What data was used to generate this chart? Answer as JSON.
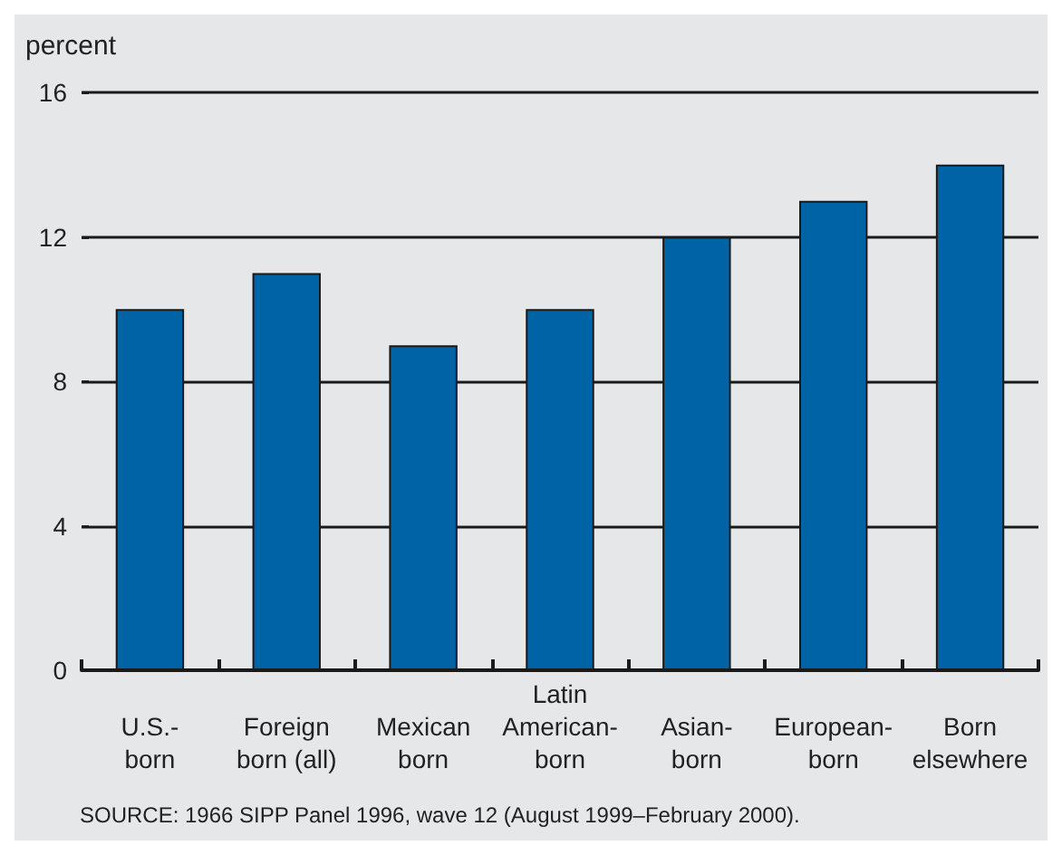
{
  "chart_data": {
    "type": "bar",
    "ylabel": "percent",
    "categories": [
      "U.S.-\nborn",
      "Foreign\nborn (all)",
      "Mexican\nborn",
      "Latin\nAmerican-\nborn",
      "Asian-\nborn",
      "European-\nborn",
      "Born\nelsewhere"
    ],
    "values": [
      10,
      11,
      9,
      10,
      12,
      13,
      14
    ],
    "color": "#0063a6",
    "ylim": [
      0,
      16
    ],
    "yticks": [
      0,
      4,
      8,
      12,
      16
    ],
    "grid": "y",
    "annotations": [
      "SOURCE: 1966 SIPP Panel 1996, wave 12 (August 1999–February 2000)."
    ]
  }
}
